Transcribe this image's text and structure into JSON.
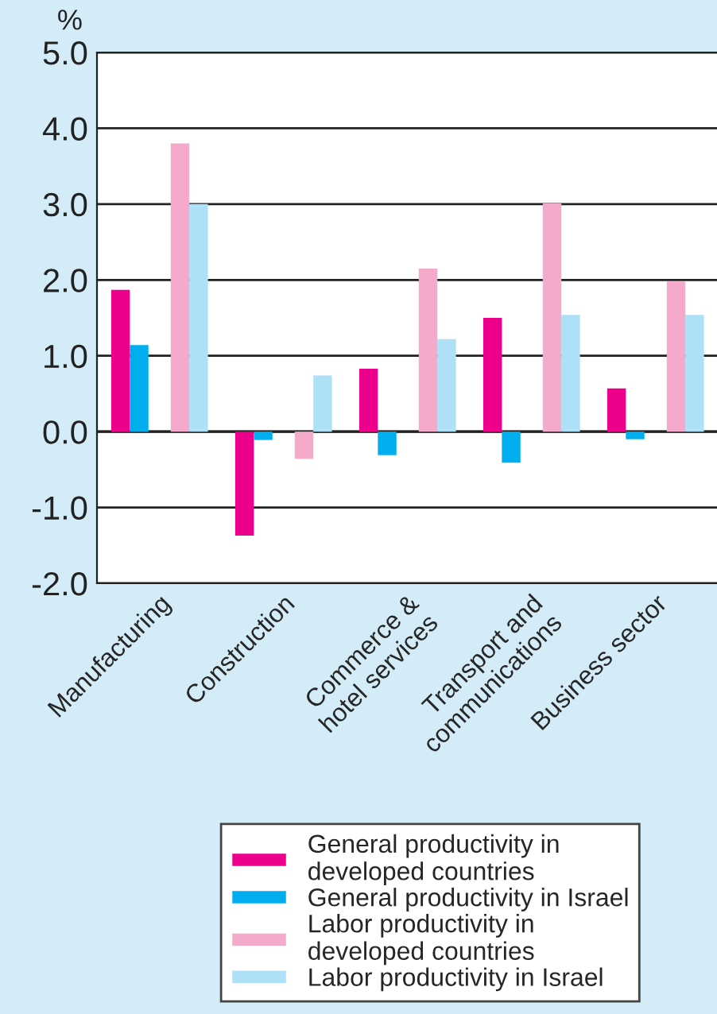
{
  "chart_data": {
    "type": "bar",
    "ylabel": "%",
    "categories": [
      "Manufacturing",
      "Construction",
      "Commerce &\nhotel services",
      "Transport and\ncommunications",
      "Business sector"
    ],
    "series": [
      {
        "name": "General productivity in\ndeveloped countries",
        "color": "#ec008c",
        "values": [
          1.87,
          -1.37,
          0.83,
          1.5,
          0.57
        ]
      },
      {
        "name": "General productivity in Israel",
        "color": "#00aeef",
        "values": [
          1.14,
          -0.11,
          -0.31,
          -0.41,
          -0.1
        ]
      },
      {
        "name": "Labor productivity in\ndeveloped countries",
        "color": "#f5aacb",
        "values": [
          3.8,
          -0.36,
          2.15,
          3.01,
          1.98
        ]
      },
      {
        "name": "Labor productivity in Israel",
        "color": "#aee0f7",
        "values": [
          3.0,
          0.74,
          1.22,
          1.54,
          1.54
        ]
      }
    ],
    "ylim": [
      -2,
      5
    ],
    "yticks": [
      {
        "value": -2,
        "label": "-2.0"
      },
      {
        "value": -1,
        "label": "-1.0"
      },
      {
        "value": 0,
        "label": "0.0"
      },
      {
        "value": 1,
        "label": "1.0"
      },
      {
        "value": 2,
        "label": "2.0"
      },
      {
        "value": 3,
        "label": "3.0"
      },
      {
        "value": 4,
        "label": "4.0"
      },
      {
        "value": 5,
        "label": "5.0"
      }
    ],
    "grid": "y",
    "legend": "bottom"
  }
}
